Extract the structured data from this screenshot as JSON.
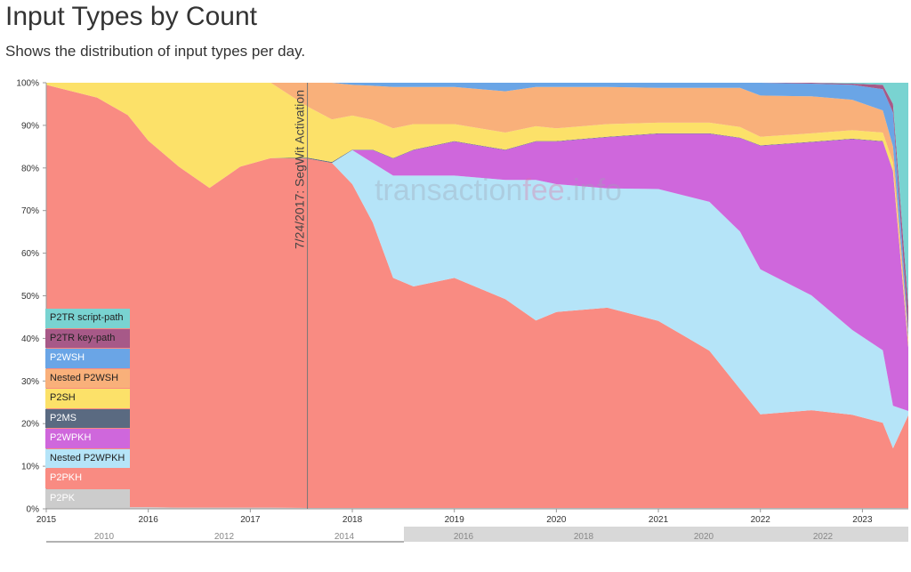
{
  "title": "Input Types by Count",
  "subtitle": "Shows the distribution of input types per day.",
  "watermark": {
    "text_pre": "transaction",
    "text_mid": "fee",
    "text_post": ".info"
  },
  "chart_data": {
    "type": "area",
    "stacked": true,
    "normalized": true,
    "ylim": [
      0,
      100
    ],
    "yticks": [
      "0%",
      "10%",
      "20%",
      "30%",
      "40%",
      "50%",
      "60%",
      "70%",
      "80%",
      "90%",
      "100%"
    ],
    "xlim": [
      2015.0,
      2023.45
    ],
    "xticks": [
      {
        "v": 2015,
        "label": "2015"
      },
      {
        "v": 2016,
        "label": "2016"
      },
      {
        "v": 2017,
        "label": "2017"
      },
      {
        "v": 2018,
        "label": "2018"
      },
      {
        "v": 2019,
        "label": "2019"
      },
      {
        "v": 2020,
        "label": "2020"
      },
      {
        "v": 2021,
        "label": "2021"
      },
      {
        "v": 2022,
        "label": "2022"
      },
      {
        "v": 2023,
        "label": "2023"
      }
    ],
    "annotation": {
      "x": 2017.56,
      "label": "7/24/2017: SegWit Activation"
    },
    "navigator_labels": [
      "2010",
      "2012",
      "2014",
      "2016",
      "2018",
      "2020",
      "2022"
    ],
    "x": [
      2015.0,
      2015.5,
      2015.8,
      2016.0,
      2016.3,
      2016.6,
      2016.9,
      2017.2,
      2017.56,
      2017.8,
      2018.0,
      2018.2,
      2018.4,
      2018.6,
      2019.0,
      2019.5,
      2019.8,
      2020.0,
      2020.5,
      2021.0,
      2021.5,
      2021.8,
      2022.0,
      2022.5,
      2022.9,
      2023.2,
      2023.3,
      2023.45
    ],
    "series": [
      {
        "name": "P2PK",
        "color": "#cccccc",
        "values": [
          0.5,
          0.5,
          0.4,
          0.4,
          0.3,
          0.3,
          0.3,
          0.3,
          0.2,
          0.2,
          0.2,
          0.2,
          0.2,
          0.2,
          0.2,
          0.2,
          0.2,
          0.2,
          0.2,
          0.2,
          0.2,
          0.2,
          0.2,
          0.2,
          0.2,
          0.2,
          0.2,
          0.2
        ]
      },
      {
        "name": "P2PKH",
        "color": "#f98b82",
        "values": [
          99,
          96,
          92,
          86,
          80,
          75,
          80,
          82,
          82,
          81,
          76,
          67,
          54,
          52,
          54,
          49,
          44,
          46,
          47,
          44,
          37,
          28,
          22,
          23,
          22,
          20,
          14,
          22
        ]
      },
      {
        "name": "Nested P2WPKH",
        "color": "#b5e4f8",
        "values": [
          0,
          0,
          0,
          0,
          0,
          0,
          0,
          0,
          0,
          0,
          8,
          14,
          24,
          26,
          24,
          28,
          33,
          30,
          28,
          31,
          35,
          37,
          34,
          27,
          20,
          17,
          10,
          1
        ]
      },
      {
        "name": "P2WPKH",
        "color": "#cf67dc",
        "values": [
          0,
          0,
          0,
          0,
          0,
          0,
          0,
          0,
          0,
          0,
          0,
          3,
          4,
          6,
          8,
          7,
          9,
          10,
          12,
          13,
          16,
          22,
          29,
          36,
          45,
          49,
          55,
          15
        ]
      },
      {
        "name": "P2MS",
        "color": "#5a6a81",
        "values": [
          0,
          0,
          0,
          0,
          0,
          0,
          0,
          0,
          0.2,
          0.2,
          0.1,
          0.1,
          0.1,
          0.1,
          0.1,
          0.1,
          0.1,
          0.1,
          0.1,
          0.1,
          0.1,
          0.1,
          0.1,
          0.1,
          0.1,
          0.1,
          0.1,
          0.1
        ]
      },
      {
        "name": "P2SH",
        "color": "#fce169",
        "values": [
          0.5,
          3.5,
          7.6,
          13.6,
          19.7,
          24.7,
          19.7,
          17.7,
          12,
          10,
          8,
          7,
          7,
          6,
          4,
          4,
          3.5,
          3,
          3,
          2.5,
          2.5,
          2.5,
          2,
          2,
          2,
          2,
          2,
          1
        ]
      },
      {
        "name": "Nested P2WSH",
        "color": "#f9b07a",
        "values": [
          0,
          0,
          0,
          0,
          0,
          0,
          0,
          0,
          5.6,
          8.6,
          7.2,
          8,
          9.7,
          8.7,
          8.7,
          9.7,
          9.2,
          9.7,
          8.7,
          8.2,
          8.2,
          9.2,
          9.7,
          8.7,
          7.2,
          5.2,
          3.7,
          1.2
        ]
      },
      {
        "name": "P2WSH",
        "color": "#6aa5e6",
        "values": [
          0,
          0,
          0,
          0,
          0,
          0,
          0,
          0,
          0,
          0,
          0.5,
          0.7,
          1,
          1,
          1,
          2,
          1,
          1,
          1,
          1.2,
          1.2,
          1.2,
          3,
          3,
          3.5,
          5,
          8,
          1.5
        ]
      },
      {
        "name": "P2TR key-path",
        "color": "#a75988",
        "values": [
          0,
          0,
          0,
          0,
          0,
          0,
          0,
          0,
          0,
          0,
          0,
          0,
          0,
          0,
          0,
          0,
          0,
          0,
          0,
          0,
          0,
          0,
          0,
          0.2,
          0.3,
          1,
          2,
          6
        ]
      },
      {
        "name": "P2TR script-path",
        "color": "#79d3d1",
        "values": [
          0,
          0,
          0,
          0,
          0,
          0,
          0,
          0,
          0,
          0,
          0,
          0,
          0,
          0,
          0,
          0,
          0,
          0,
          0,
          0,
          0,
          0,
          0,
          0,
          0.2,
          0.5,
          5,
          53
        ]
      }
    ]
  },
  "legend": [
    {
      "label": "P2TR script-path",
      "color": "#79d3d1",
      "text_color": "#222222"
    },
    {
      "label": "P2TR key-path",
      "color": "#a75988",
      "text_color": "#222222"
    },
    {
      "label": "P2WSH",
      "color": "#6aa5e6",
      "text_color": "#ffffff"
    },
    {
      "label": "Nested P2WSH",
      "color": "#f9b07a",
      "text_color": "#222222"
    },
    {
      "label": "P2SH",
      "color": "#fce169",
      "text_color": "#222222"
    },
    {
      "label": "P2MS",
      "color": "#5a6a81",
      "text_color": "#ffffff"
    },
    {
      "label": "P2WPKH",
      "color": "#cf67dc",
      "text_color": "#ffffff"
    },
    {
      "label": "Nested P2WPKH",
      "color": "#b5e4f8",
      "text_color": "#222222"
    },
    {
      "label": "P2PKH",
      "color": "#f98b82",
      "text_color": "#ffffff"
    },
    {
      "label": "P2PK",
      "color": "#cccccc",
      "text_color": "#ffffff"
    }
  ]
}
